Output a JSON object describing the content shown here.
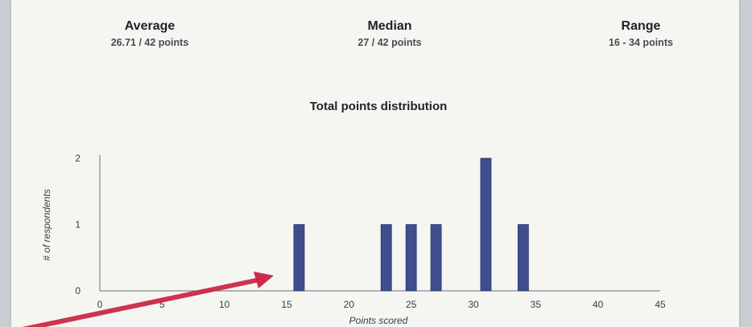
{
  "summary": {
    "average": {
      "label": "Average",
      "value": "26.71 / 42 points"
    },
    "median": {
      "label": "Median",
      "value": "27 / 42 points"
    },
    "range": {
      "label": "Range",
      "value": "16 - 34 points"
    }
  },
  "chart_data": {
    "type": "bar",
    "title": "Total points distribution",
    "xlabel": "Points scored",
    "ylabel": "# of respondents",
    "x": [
      16,
      23,
      25,
      27,
      31,
      34
    ],
    "values": [
      1,
      1,
      1,
      1,
      2,
      1
    ],
    "xlim": [
      0,
      45
    ],
    "ylim": [
      0,
      2
    ],
    "x_ticks": [
      0,
      5,
      10,
      15,
      20,
      25,
      30,
      35,
      40,
      45
    ],
    "y_ticks": [
      0,
      1,
      2
    ],
    "grid": false,
    "legend": "none",
    "bar_color": "#3f4e8c"
  },
  "annotation": {
    "type": "hand-drawn arrow",
    "color": "#c8203f"
  }
}
